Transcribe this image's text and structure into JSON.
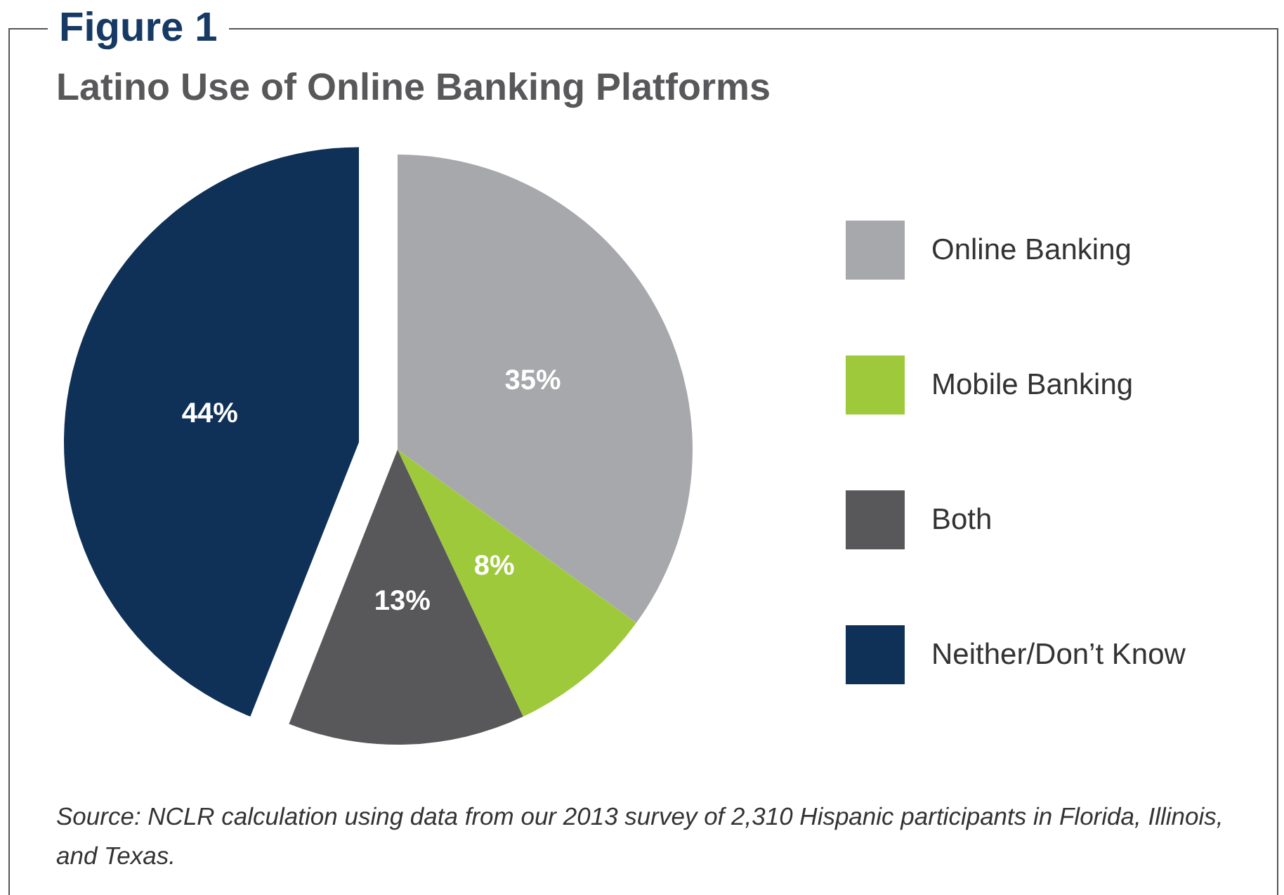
{
  "chart_data": {
    "type": "pie",
    "title": "Figure 1",
    "subtitle": "Latino Use of Online Banking Platforms",
    "categories": [
      "Online Banking",
      "Mobile Banking",
      "Both",
      "Neither/Don’t Know"
    ],
    "values": [
      35,
      8,
      13,
      44
    ],
    "colors": [
      "#a7a8ab",
      "#9dc93b",
      "#58585a",
      "#0f3157"
    ],
    "value_labels": [
      "35%",
      "8%",
      "13%",
      "44%"
    ],
    "legend": "right",
    "annotations": [
      "Source: NCLR calculation using data from our 2013 survey of 2,310 Hispanic participants in Florida, Illinois, and Texas."
    ]
  }
}
